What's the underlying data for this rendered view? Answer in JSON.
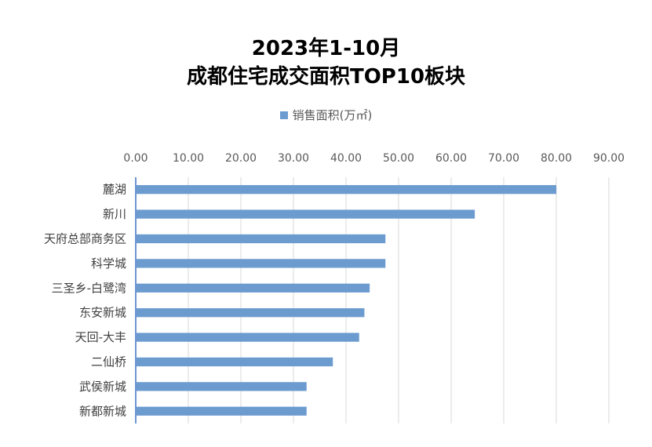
{
  "chart_data": {
    "type": "bar",
    "orientation": "horizontal",
    "title": "2023年1-10月",
    "subtitle": "成都住宅成交面积TOP10板块",
    "categories": [
      "麓湖",
      "新川",
      "天府总部商务区",
      "科学城",
      "三圣乡-白鹭湾",
      "东安新城",
      "天回-大丰",
      "二仙桥",
      "武侯新城",
      "新都新城"
    ],
    "series": [
      {
        "name": "销售面积(万㎡)",
        "values": [
          80.0,
          64.5,
          47.5,
          47.5,
          44.5,
          43.5,
          42.5,
          37.5,
          32.5,
          32.5
        ]
      }
    ],
    "x_ticks": [
      "0.00",
      "10.00",
      "20.00",
      "30.00",
      "40.00",
      "50.00",
      "60.00",
      "70.00",
      "80.00",
      "90.00"
    ],
    "xlim": [
      0,
      90
    ],
    "x_axis_position": "top",
    "grid": true,
    "legend": "top-center",
    "color": "#6C9BCF"
  }
}
